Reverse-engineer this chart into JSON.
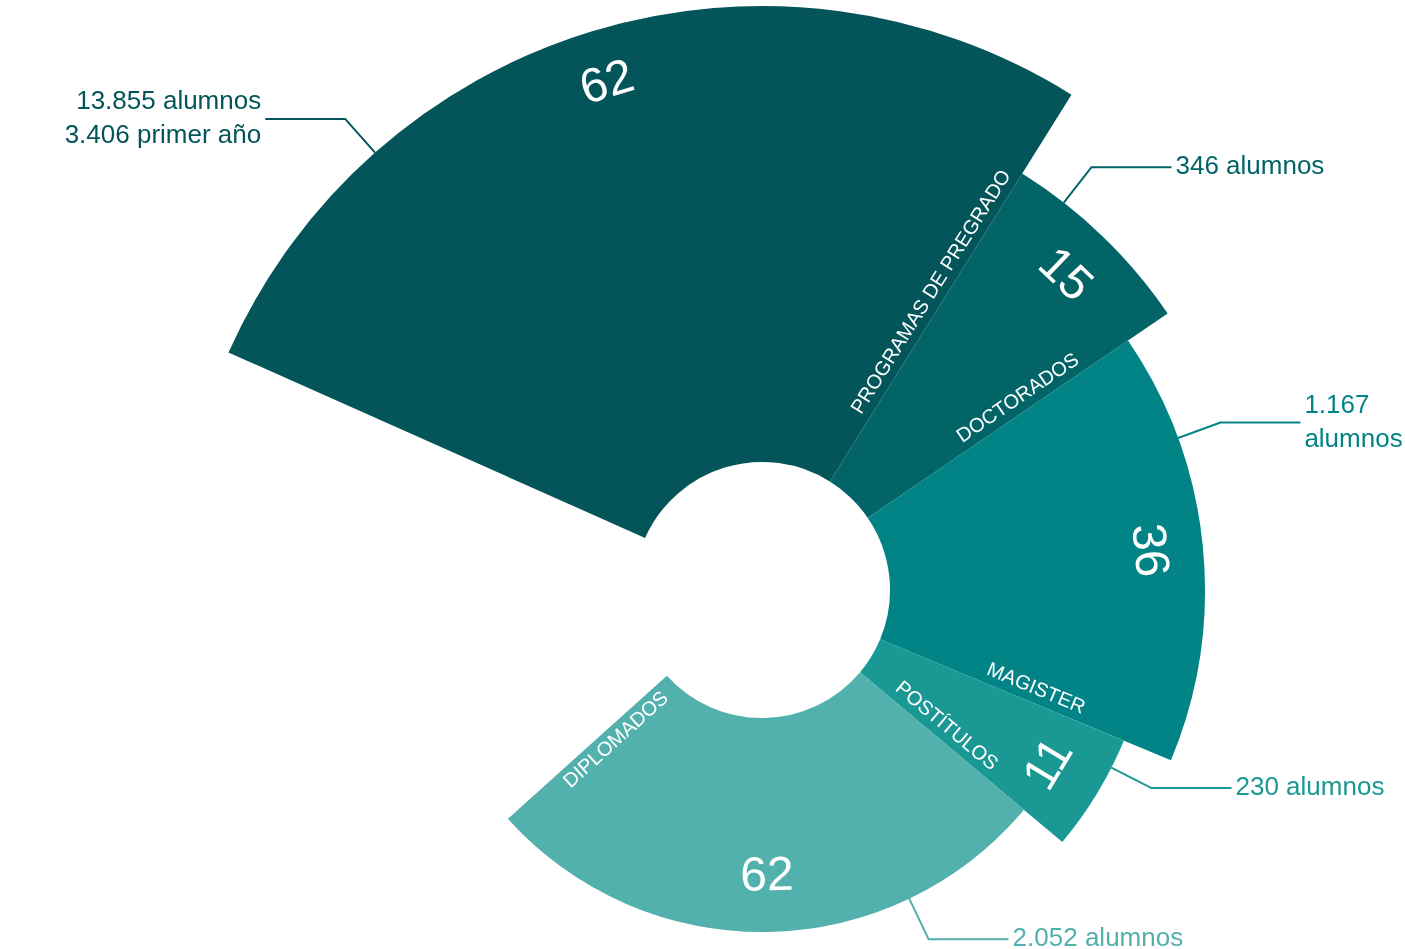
{
  "chart_data": {
    "type": "other",
    "categories": [
      "PROGRAMAS DE PREGRADO",
      "DOCTORADOS",
      "MAGISTER",
      "POSTÍTULOS",
      "DIPLOMADOS"
    ],
    "values": [
      62,
      15,
      36,
      11,
      62
    ],
    "colors": [
      "#03555a",
      "#036468",
      "#028386",
      "#1a9894",
      "#52b0ad"
    ],
    "data_labels": true,
    "legend": false,
    "annotations": [
      "13.855 alumnos\n3.406 primer año",
      "346 alumnos",
      "1.167\nalumnos",
      "230 alumnos",
      "2.052 alumnos"
    ]
  }
}
